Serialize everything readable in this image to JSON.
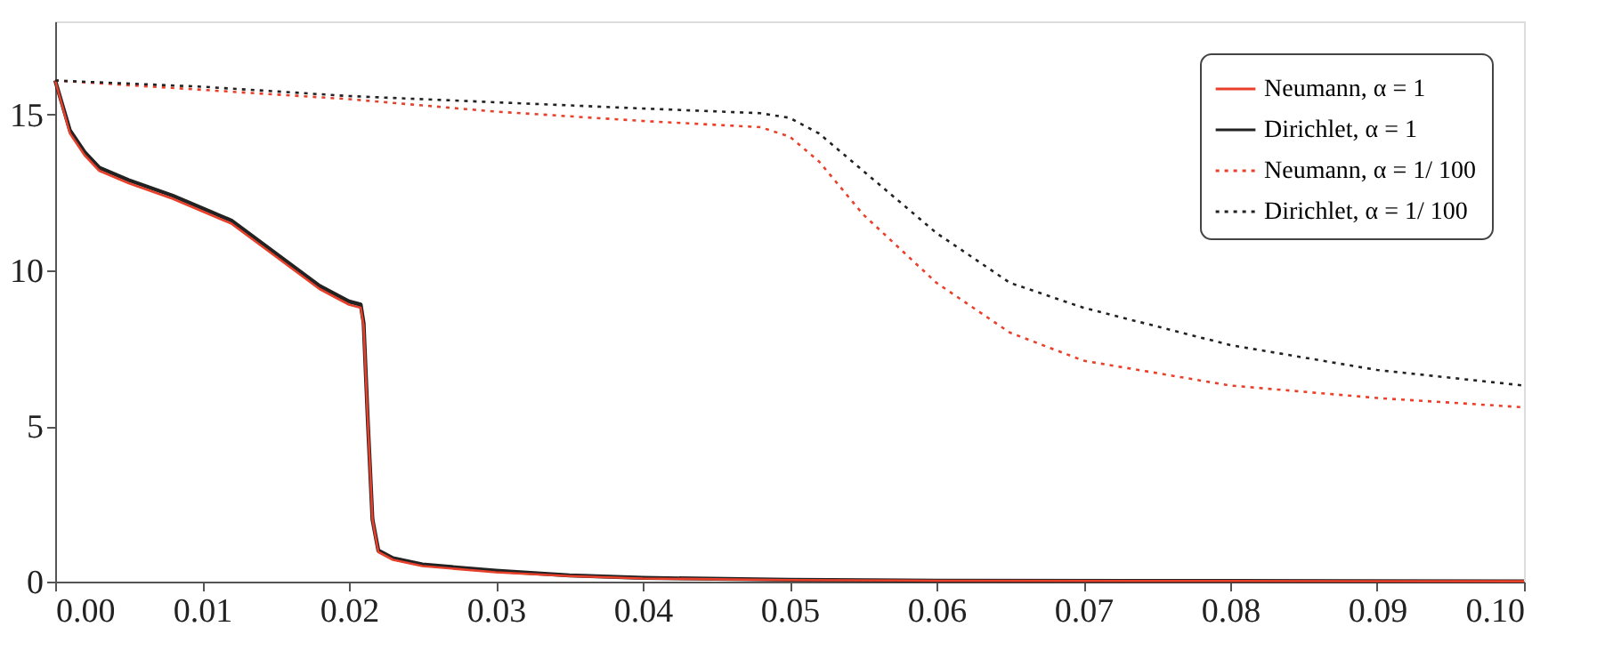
{
  "chart_data": {
    "type": "line",
    "xlim": [
      0,
      0.1
    ],
    "ylim": [
      0,
      18
    ],
    "xticks": [
      {
        "value": 0,
        "label": "0.00"
      },
      {
        "value": 0.01,
        "label": "0.01"
      },
      {
        "value": 0.02,
        "label": "0.02"
      },
      {
        "value": 0.03,
        "label": "0.03"
      },
      {
        "value": 0.04,
        "label": "0.04"
      },
      {
        "value": 0.05,
        "label": "0.05"
      },
      {
        "value": 0.06,
        "label": "0.06"
      },
      {
        "value": 0.07,
        "label": "0.07"
      },
      {
        "value": 0.08,
        "label": "0.08"
      },
      {
        "value": 0.09,
        "label": "0.09"
      },
      {
        "value": 0.1,
        "label": "0.10"
      }
    ],
    "yticks": [
      0,
      5,
      10,
      15
    ],
    "grid": false,
    "legend": "top right",
    "marker": "none",
    "series": [
      {
        "name": "Neumann, α = 1",
        "color": "#e8402a",
        "line_style": "solid",
        "x": [
          0,
          0.001,
          0.002,
          0.003,
          0.005,
          0.008,
          0.01,
          0.012,
          0.014,
          0.016,
          0.018,
          0.02,
          0.0208,
          0.021,
          0.0213,
          0.0216,
          0.022,
          0.023,
          0.025,
          0.03,
          0.035,
          0.04,
          0.05,
          0.06,
          0.08,
          0.1
        ],
        "values": [
          16.1,
          14.4,
          13.7,
          13.2,
          12.8,
          12.3,
          11.9,
          11.5,
          10.8,
          10.1,
          9.4,
          8.9,
          8.8,
          8.2,
          5,
          2,
          0.95,
          0.7,
          0.5,
          0.3,
          0.18,
          0.1,
          0.05,
          0.03,
          0.02,
          0.01
        ]
      },
      {
        "name": "Dirichlet, α = 1",
        "color": "#222222",
        "line_style": "solid",
        "x": [
          0,
          0.001,
          0.002,
          0.003,
          0.005,
          0.008,
          0.01,
          0.012,
          0.014,
          0.016,
          0.018,
          0.02,
          0.0208,
          0.021,
          0.0213,
          0.0216,
          0.022,
          0.023,
          0.025,
          0.03,
          0.035,
          0.04,
          0.05,
          0.06,
          0.08,
          0.1
        ],
        "values": [
          16.1,
          14.5,
          13.8,
          13.3,
          12.9,
          12.4,
          12.0,
          11.6,
          10.9,
          10.2,
          9.5,
          9.0,
          8.9,
          8.3,
          5,
          2,
          1.0,
          0.75,
          0.55,
          0.35,
          0.2,
          0.12,
          0.06,
          0.03,
          0.02,
          0.01
        ]
      },
      {
        "name": "Neumann, α = 1/ 100",
        "color": "#e8402a",
        "line_style": "dotted",
        "x": [
          0,
          0.01,
          0.02,
          0.03,
          0.04,
          0.048,
          0.05,
          0.052,
          0.055,
          0.06,
          0.065,
          0.07,
          0.08,
          0.09,
          0.1
        ],
        "values": [
          16.1,
          15.8,
          15.5,
          15.1,
          14.8,
          14.6,
          14.3,
          13.5,
          11.8,
          9.6,
          8.0,
          7.1,
          6.3,
          5.9,
          5.6
        ]
      },
      {
        "name": "Dirichlet, α = 1/ 100",
        "color": "#222222",
        "line_style": "dotted",
        "x": [
          0,
          0.01,
          0.02,
          0.03,
          0.04,
          0.048,
          0.05,
          0.052,
          0.055,
          0.06,
          0.065,
          0.07,
          0.08,
          0.09,
          0.1
        ],
        "values": [
          16.1,
          15.9,
          15.6,
          15.4,
          15.2,
          15.05,
          14.9,
          14.4,
          13.2,
          11.2,
          9.6,
          8.8,
          7.6,
          6.8,
          6.3
        ]
      }
    ]
  }
}
